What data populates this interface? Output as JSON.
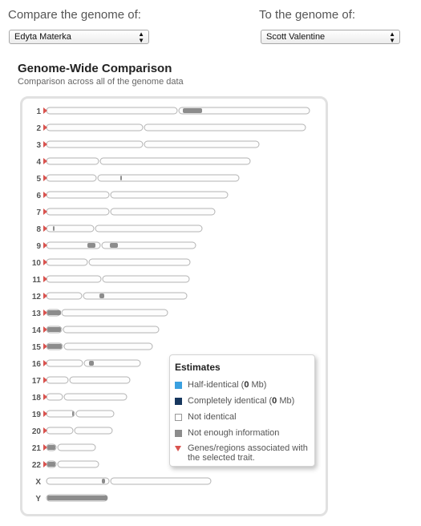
{
  "selectors": {
    "compare_label": "Compare the genome of:",
    "compare_value": "Edyta Materka",
    "to_label": "To the genome of:",
    "to_value": "Scott Valentine"
  },
  "header": {
    "title": "Genome-Wide Comparison",
    "subtitle": "Comparison across all of the genome data"
  },
  "colors": {
    "half_identical": "#3aa0e0",
    "completely_identical": "#17375e",
    "not_identical": "#ffffff",
    "not_enough_info": "#8c8c8c",
    "trait_marker": "#d9534f"
  },
  "chromosomes": [
    {
      "label": "1"
    },
    {
      "label": "2"
    },
    {
      "label": "3"
    },
    {
      "label": "4"
    },
    {
      "label": "5"
    },
    {
      "label": "6"
    },
    {
      "label": "7"
    },
    {
      "label": "8"
    },
    {
      "label": "9"
    },
    {
      "label": "10"
    },
    {
      "label": "11"
    },
    {
      "label": "12"
    },
    {
      "label": "13"
    },
    {
      "label": "14"
    },
    {
      "label": "15"
    },
    {
      "label": "16"
    },
    {
      "label": "17"
    },
    {
      "label": "18"
    },
    {
      "label": "19"
    },
    {
      "label": "20"
    },
    {
      "label": "21"
    },
    {
      "label": "22"
    },
    {
      "label": "X"
    },
    {
      "label": "Y"
    }
  ],
  "legend": {
    "title": "Estimates",
    "half_identical": {
      "prefix": "Half-identical (",
      "value": "0",
      "suffix": " Mb)"
    },
    "completely_identical": {
      "prefix": "Completely identical (",
      "value": "0",
      "suffix": " Mb)"
    },
    "not_identical": "Not identical",
    "not_enough": "Not enough information",
    "trait_line1": "Genes/regions associated with",
    "trait_line2": "the selected trait."
  }
}
